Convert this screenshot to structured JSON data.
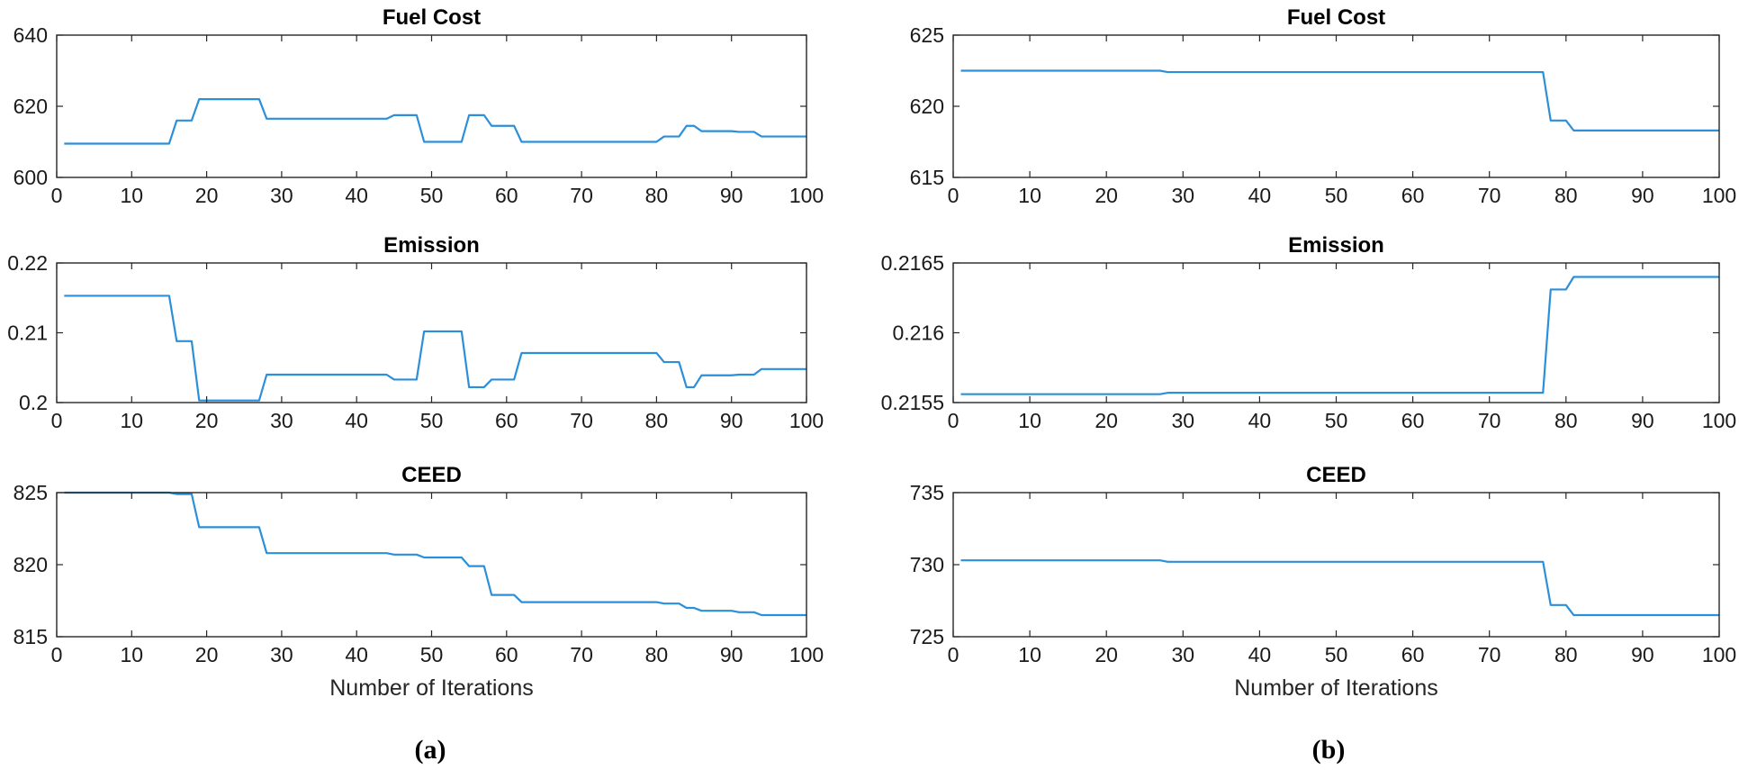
{
  "figure": {
    "panel_labels": [
      "(a)",
      "(b)"
    ]
  },
  "chart_data": [
    {
      "type": "line",
      "panel": "(a)",
      "title": "Fuel Cost",
      "xlabel": "",
      "ylabel": "",
      "xlim": [
        0,
        100
      ],
      "ylim": [
        600,
        640
      ],
      "xticks": [
        0,
        10,
        20,
        30,
        40,
        50,
        60,
        70,
        80,
        90,
        100
      ],
      "xtick_labels": [
        "0",
        "10",
        "20",
        "30",
        "40",
        "50",
        "60",
        "70",
        "80",
        "90",
        "100"
      ],
      "yticks": [
        600,
        620,
        640
      ],
      "ytick_labels": [
        "600",
        "620",
        "640"
      ],
      "series": [
        {
          "name": "Fuel Cost",
          "color": "#2b8fd9",
          "x": [
            1,
            15,
            16,
            18,
            19,
            27,
            28,
            44,
            45,
            48,
            49,
            54,
            55,
            57,
            58,
            61,
            62,
            80,
            81,
            83,
            84,
            85,
            86,
            90,
            91,
            93,
            94,
            100
          ],
          "y": [
            609.5,
            609.5,
            616,
            616,
            622,
            622,
            616.5,
            616.5,
            617.5,
            617.5,
            610,
            610,
            617.5,
            617.5,
            614.5,
            614.5,
            610,
            610,
            611.5,
            611.5,
            614.5,
            614.5,
            613,
            613,
            612.8,
            612.8,
            611.5,
            611.5
          ]
        }
      ]
    },
    {
      "type": "line",
      "panel": "(a)",
      "title": "Emission",
      "xlabel": "",
      "ylabel": "",
      "xlim": [
        0,
        100
      ],
      "ylim": [
        0.2,
        0.22
      ],
      "xticks": [
        0,
        10,
        20,
        30,
        40,
        50,
        60,
        70,
        80,
        90,
        100
      ],
      "xtick_labels": [
        "0",
        "10",
        "20",
        "30",
        "40",
        "50",
        "60",
        "70",
        "80",
        "90",
        "100"
      ],
      "yticks": [
        0.2,
        0.21,
        0.22
      ],
      "ytick_labels": [
        "0.2",
        "0.21",
        "0.22"
      ],
      "series": [
        {
          "name": "Emission",
          "color": "#2b8fd9",
          "x": [
            1,
            15,
            16,
            18,
            19,
            27,
            28,
            44,
            45,
            48,
            49,
            54,
            55,
            57,
            58,
            61,
            62,
            80,
            81,
            83,
            84,
            85,
            86,
            90,
            91,
            93,
            94,
            100
          ],
          "y": [
            0.2153,
            0.2153,
            0.2088,
            0.2088,
            0.2003,
            0.2003,
            0.204,
            0.204,
            0.2033,
            0.2033,
            0.2102,
            0.2102,
            0.2022,
            0.2022,
            0.2033,
            0.2033,
            0.2071,
            0.2071,
            0.2058,
            0.2058,
            0.2022,
            0.2022,
            0.2039,
            0.2039,
            0.204,
            0.204,
            0.2048,
            0.2048
          ]
        }
      ]
    },
    {
      "type": "line",
      "panel": "(a)",
      "title": "CEED",
      "xlabel": "Number of Iterations",
      "ylabel": "",
      "xlim": [
        0,
        100
      ],
      "ylim": [
        815,
        825
      ],
      "xticks": [
        0,
        10,
        20,
        30,
        40,
        50,
        60,
        70,
        80,
        90,
        100
      ],
      "xtick_labels": [
        "0",
        "10",
        "20",
        "30",
        "40",
        "50",
        "60",
        "70",
        "80",
        "90",
        "100"
      ],
      "yticks": [
        815,
        820,
        825
      ],
      "ytick_labels": [
        "815",
        "820",
        "825"
      ],
      "series": [
        {
          "name": "CEED",
          "color": "#2b8fd9",
          "x": [
            1,
            15,
            16,
            18,
            19,
            27,
            28,
            44,
            45,
            48,
            49,
            54,
            55,
            57,
            58,
            61,
            62,
            77,
            78,
            80,
            81,
            83,
            84,
            85,
            86,
            90,
            91,
            93,
            94,
            100
          ],
          "y": [
            825,
            825,
            824.9,
            824.9,
            822.6,
            822.6,
            820.8,
            820.8,
            820.7,
            820.7,
            820.5,
            820.5,
            819.9,
            819.9,
            817.9,
            817.9,
            817.4,
            817.4,
            817.4,
            817.4,
            817.3,
            817.3,
            817,
            817,
            816.8,
            816.8,
            816.7,
            816.7,
            816.5,
            816.5
          ]
        }
      ]
    },
    {
      "type": "line",
      "panel": "(b)",
      "title": "Fuel Cost",
      "xlabel": "",
      "ylabel": "",
      "xlim": [
        0,
        100
      ],
      "ylim": [
        615,
        625
      ],
      "xticks": [
        0,
        10,
        20,
        30,
        40,
        50,
        60,
        70,
        80,
        90,
        100
      ],
      "xtick_labels": [
        "0",
        "10",
        "20",
        "30",
        "40",
        "50",
        "60",
        "70",
        "80",
        "90",
        "100"
      ],
      "yticks": [
        615,
        620,
        625
      ],
      "ytick_labels": [
        "615",
        "620",
        "625"
      ],
      "series": [
        {
          "name": "Fuel Cost",
          "color": "#2b8fd9",
          "x": [
            1,
            27,
            28,
            77,
            78,
            80,
            81,
            100
          ],
          "y": [
            622.5,
            622.5,
            622.4,
            622.4,
            619,
            619,
            618.3,
            618.3
          ]
        }
      ]
    },
    {
      "type": "line",
      "panel": "(b)",
      "title": "Emission",
      "xlabel": "",
      "ylabel": "",
      "xlim": [
        0,
        100
      ],
      "ylim": [
        0.2155,
        0.2165
      ],
      "xticks": [
        0,
        10,
        20,
        30,
        40,
        50,
        60,
        70,
        80,
        90,
        100
      ],
      "xtick_labels": [
        "0",
        "10",
        "20",
        "30",
        "40",
        "50",
        "60",
        "70",
        "80",
        "90",
        "100"
      ],
      "yticks": [
        0.2155,
        0.216,
        0.2165
      ],
      "ytick_labels": [
        "0.2155",
        "0.216",
        "0.2165"
      ],
      "series": [
        {
          "name": "Emission",
          "color": "#2b8fd9",
          "x": [
            1,
            27,
            28,
            77,
            78,
            80,
            81,
            100
          ],
          "y": [
            0.21556,
            0.21556,
            0.21557,
            0.21557,
            0.21631,
            0.21631,
            0.2164,
            0.2164
          ]
        }
      ]
    },
    {
      "type": "line",
      "panel": "(b)",
      "title": "CEED",
      "xlabel": "Number of Iterations",
      "ylabel": "",
      "xlim": [
        0,
        100
      ],
      "ylim": [
        725,
        735
      ],
      "xticks": [
        0,
        10,
        20,
        30,
        40,
        50,
        60,
        70,
        80,
        90,
        100
      ],
      "xtick_labels": [
        "0",
        "10",
        "20",
        "30",
        "40",
        "50",
        "60",
        "70",
        "80",
        "90",
        "100"
      ],
      "yticks": [
        725,
        730,
        735
      ],
      "ytick_labels": [
        "725",
        "730",
        "735"
      ],
      "series": [
        {
          "name": "CEED",
          "color": "#2b8fd9",
          "x": [
            1,
            27,
            28,
            77,
            78,
            80,
            81,
            100
          ],
          "y": [
            730.3,
            730.3,
            730.2,
            730.2,
            727.2,
            727.2,
            726.5,
            726.5
          ]
        }
      ]
    }
  ]
}
